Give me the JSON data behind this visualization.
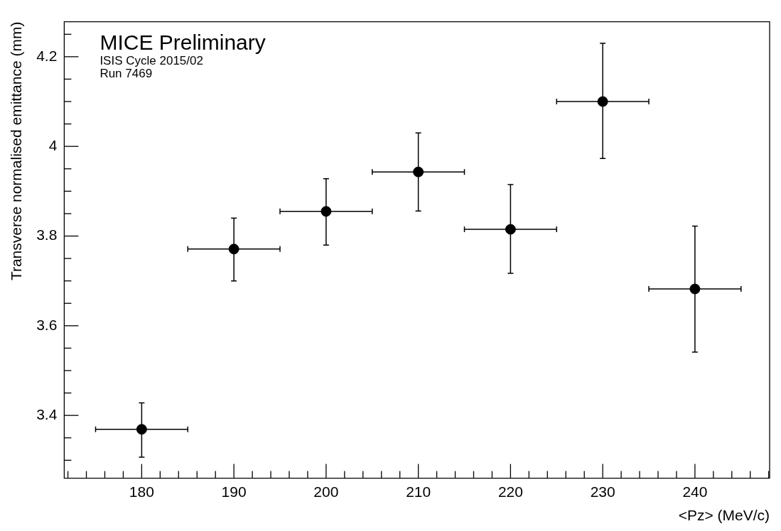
{
  "chart_data": {
    "type": "scatter",
    "xlabel": "<Pz> (MeV/c)",
    "ylabel": "Transverse normalised emittance (mm)",
    "annotations": [
      "MICE Preliminary",
      "ISIS Cycle 2015/02",
      "Run 7469"
    ],
    "x": [
      180,
      190,
      200,
      210,
      220,
      230,
      240
    ],
    "series": [
      {
        "color": "#000000",
        "values": [
          3.369,
          3.771,
          3.855,
          3.943,
          3.815,
          4.1,
          3.682
        ],
        "errors": [
          [
            3.307,
            3.428
          ],
          [
            3.7,
            3.84
          ],
          [
            3.78,
            3.928
          ],
          [
            3.856,
            4.03
          ],
          [
            3.717,
            3.915
          ],
          [
            3.973,
            4.23
          ],
          [
            3.541,
            3.822
          ]
        ],
        "xerrors": [
          5,
          5,
          5,
          5,
          5,
          5,
          5
        ]
      }
    ],
    "marker": "circle",
    "grid": false,
    "legend": false,
    "xlim": [
      171.6,
      248.1
    ],
    "ylim": [
      3.26,
      4.278
    ],
    "xticks": [
      {
        "value": 172,
        "label": null
      },
      {
        "value": 174,
        "label": null
      },
      {
        "value": 176,
        "label": null
      },
      {
        "value": 178,
        "label": null
      },
      180,
      {
        "value": 182,
        "label": null
      },
      {
        "value": 184,
        "label": null
      },
      {
        "value": 186,
        "label": null
      },
      {
        "value": 188,
        "label": null
      },
      190,
      {
        "value": 192,
        "label": null
      },
      {
        "value": 194,
        "label": null
      },
      {
        "value": 196,
        "label": null
      },
      {
        "value": 198,
        "label": null
      },
      200,
      {
        "value": 202,
        "label": null
      },
      {
        "value": 204,
        "label": null
      },
      {
        "value": 206,
        "label": null
      },
      {
        "value": 208,
        "label": null
      },
      210,
      {
        "value": 212,
        "label": null
      },
      {
        "value": 214,
        "label": null
      },
      {
        "value": 216,
        "label": null
      },
      {
        "value": 218,
        "label": null
      },
      220,
      {
        "value": 222,
        "label": null
      },
      {
        "value": 224,
        "label": null
      },
      {
        "value": 226,
        "label": null
      },
      {
        "value": 228,
        "label": null
      },
      230,
      {
        "value": 232,
        "label": null
      },
      {
        "value": 234,
        "label": null
      },
      {
        "value": 236,
        "label": null
      },
      {
        "value": 238,
        "label": null
      },
      240,
      {
        "value": 242,
        "label": null
      },
      {
        "value": 244,
        "label": null
      },
      {
        "value": 246,
        "label": null
      },
      {
        "value": 248,
        "label": null
      }
    ],
    "yticks": [
      {
        "value": 3.3,
        "label": null
      },
      {
        "value": 3.35,
        "label": null
      },
      3.4,
      {
        "value": 3.45,
        "label": null
      },
      {
        "value": 3.5,
        "label": null
      },
      {
        "value": 3.55,
        "label": null
      },
      3.6,
      {
        "value": 3.65,
        "label": null
      },
      {
        "value": 3.7,
        "label": null
      },
      {
        "value": 3.75,
        "label": null
      },
      3.8,
      {
        "value": 3.85,
        "label": null
      },
      {
        "value": 3.9,
        "label": null
      },
      {
        "value": 3.95,
        "label": null
      },
      4,
      {
        "value": 4.05,
        "label": null
      },
      {
        "value": 4.1,
        "label": null
      },
      {
        "value": 4.15,
        "label": null
      },
      4.2,
      {
        "value": 4.25,
        "label": null
      }
    ]
  }
}
